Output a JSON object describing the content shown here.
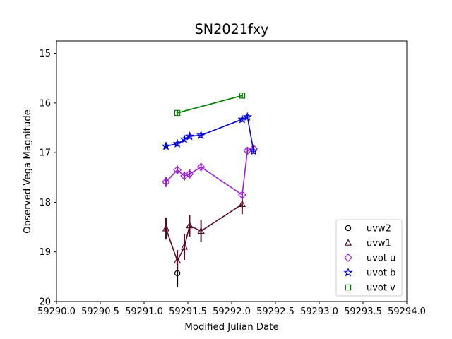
{
  "chart_data": {
    "type": "scatter",
    "title": "SN2021fxy",
    "xlabel": "Modified Julian Date",
    "ylabel": "Observed Vega Magnitude",
    "xlim": [
      59290.0,
      59294.0
    ],
    "ylim": [
      20,
      14.75
    ],
    "y_inverted": true,
    "grid": false,
    "legend_position": "bottom-right",
    "x_ticks": [
      59290.0,
      59290.5,
      59291.0,
      59291.5,
      59292.0,
      59292.5,
      59293.0,
      59293.5,
      59294.0
    ],
    "x_tick_labels": [
      "59290.0",
      "59290.5",
      "59291.0",
      "59291.5",
      "59292.0",
      "59292.5",
      "59293.0",
      "59293.5",
      "59294.0"
    ],
    "y_ticks": [
      15,
      16,
      17,
      18,
      19,
      20
    ],
    "y_tick_labels": [
      "15",
      "16",
      "17",
      "18",
      "19",
      "20"
    ],
    "series": [
      {
        "name": "uvw2",
        "color": "#000000",
        "marker": "circle",
        "connected": false,
        "points": [
          {
            "x": 59291.38,
            "y": 19.43,
            "err": 0.28
          }
        ]
      },
      {
        "name": "uvw1",
        "color": "#5b0a25",
        "marker": "triangle",
        "connected": true,
        "points": [
          {
            "x": 59291.25,
            "y": 18.53,
            "err": 0.22
          },
          {
            "x": 59291.38,
            "y": 19.18,
            "err": 0.22
          },
          {
            "x": 59291.46,
            "y": 18.9,
            "err": 0.26
          },
          {
            "x": 59291.52,
            "y": 18.47,
            "err": 0.22
          },
          {
            "x": 59291.65,
            "y": 18.58,
            "err": 0.22
          },
          {
            "x": 59292.12,
            "y": 18.04,
            "err": 0.2
          }
        ]
      },
      {
        "name": "uvot u",
        "color": "#9b1fd6",
        "marker": "diamond",
        "connected": true,
        "points": [
          {
            "x": 59291.25,
            "y": 17.59,
            "err": 0.1
          },
          {
            "x": 59291.38,
            "y": 17.35,
            "err": 0.09
          },
          {
            "x": 59291.46,
            "y": 17.47,
            "err": 0.09
          },
          {
            "x": 59291.52,
            "y": 17.43,
            "err": 0.09
          },
          {
            "x": 59291.65,
            "y": 17.29,
            "err": 0.08
          },
          {
            "x": 59292.12,
            "y": 17.85,
            "err": 0.1
          },
          {
            "x": 59292.18,
            "y": 16.96,
            "err": 0.07
          },
          {
            "x": 59292.25,
            "y": 16.92,
            "err": 0.07
          }
        ]
      },
      {
        "name": "uvot b",
        "color": "#0000d4",
        "marker": "star",
        "connected": true,
        "points": [
          {
            "x": 59291.25,
            "y": 16.87,
            "err": 0.05
          },
          {
            "x": 59291.38,
            "y": 16.82,
            "err": 0.05
          },
          {
            "x": 59291.46,
            "y": 16.73,
            "err": 0.05
          },
          {
            "x": 59291.52,
            "y": 16.67,
            "err": 0.05
          },
          {
            "x": 59291.65,
            "y": 16.65,
            "err": 0.05
          },
          {
            "x": 59292.12,
            "y": 16.33,
            "err": 0.05
          },
          {
            "x": 59292.18,
            "y": 16.28,
            "err": 0.05
          },
          {
            "x": 59292.25,
            "y": 16.97,
            "err": 0.05
          }
        ]
      },
      {
        "name": "uvot v",
        "color": "#008000",
        "marker": "square",
        "connected": true,
        "points": [
          {
            "x": 59291.38,
            "y": 16.2,
            "err": 0.05
          },
          {
            "x": 59292.12,
            "y": 15.85,
            "err": 0.05
          }
        ]
      }
    ]
  }
}
